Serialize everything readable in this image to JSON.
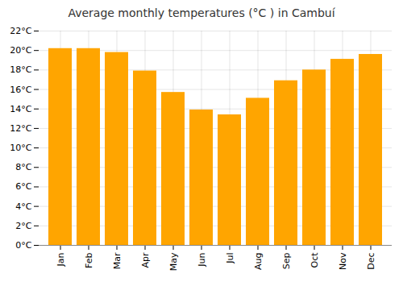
{
  "chart_data": {
    "type": "bar",
    "title": "Average monthly temperatures (°C ) in Cambuí",
    "categories": [
      "Jan",
      "Feb",
      "Mar",
      "Apr",
      "May",
      "Jun",
      "Jul",
      "Aug",
      "Sep",
      "Oct",
      "Nov",
      "Dec"
    ],
    "values": [
      20.2,
      20.2,
      19.8,
      17.9,
      15.7,
      13.9,
      13.4,
      15.1,
      16.9,
      18.0,
      19.1,
      19.6
    ],
    "color": "#FFA500",
    "ylim": [
      0,
      22
    ],
    "yticks": [
      {
        "value": 0,
        "label": "0°C"
      },
      {
        "value": 2,
        "label": "2°C"
      },
      {
        "value": 4,
        "label": "4°C"
      },
      {
        "value": 6,
        "label": "6°C"
      },
      {
        "value": 8,
        "label": "8°C"
      },
      {
        "value": 10,
        "label": "10°C"
      },
      {
        "value": 12,
        "label": "12°C"
      },
      {
        "value": 14,
        "label": "14°C"
      },
      {
        "value": 16,
        "label": "16°C"
      },
      {
        "value": 18,
        "label": "18°C"
      },
      {
        "value": 20,
        "label": "20°C"
      },
      {
        "value": 22,
        "label": "22°C"
      }
    ],
    "grid": true
  }
}
